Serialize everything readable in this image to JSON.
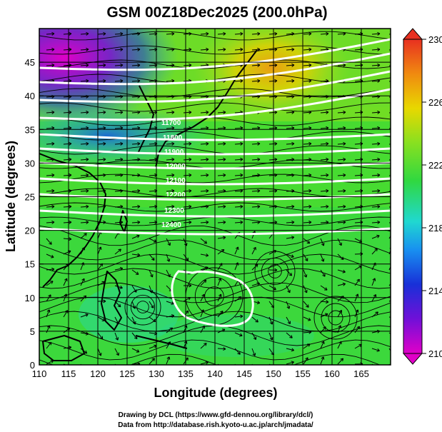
{
  "chart_data": {
    "type": "heatmap",
    "title": "GSM 00Z18Dec2025 (200.0hPa)",
    "xlabel": "Longitude (degrees)",
    "ylabel": "Latitude  (degrees)",
    "xlim": [
      110,
      170
    ],
    "ylim": [
      0,
      50
    ],
    "x_ticks": [
      110,
      115,
      120,
      125,
      130,
      135,
      140,
      145,
      150,
      155,
      160,
      165
    ],
    "y_ticks": [
      0,
      5,
      10,
      15,
      20,
      25,
      30,
      35,
      40,
      45
    ],
    "grid": true,
    "colorbar": {
      "min": 210,
      "max": 230,
      "ticks": [
        210,
        214,
        218,
        222,
        226,
        230
      ],
      "colors": [
        "#e000c8",
        "#6a10d8",
        "#1838d8",
        "#18b8f0",
        "#20e8a0",
        "#30d830",
        "#98e020",
        "#f0d000",
        "#f08010",
        "#e83020"
      ]
    },
    "contours": {
      "color": "#ffffff",
      "labels": [
        "11700",
        "11800",
        "11900",
        "12000",
        "12100",
        "12200",
        "12300",
        "12400"
      ]
    },
    "overlays": [
      "streamlines",
      "wind vectors",
      "coastlines"
    ]
  },
  "credits": {
    "line1": "Drawing by DCL (https://www.gfd-dennou.org/library/dcl/)",
    "line2": "Data from http://database.rish.kyoto-u.ac.jp/arch/jmadata/"
  }
}
